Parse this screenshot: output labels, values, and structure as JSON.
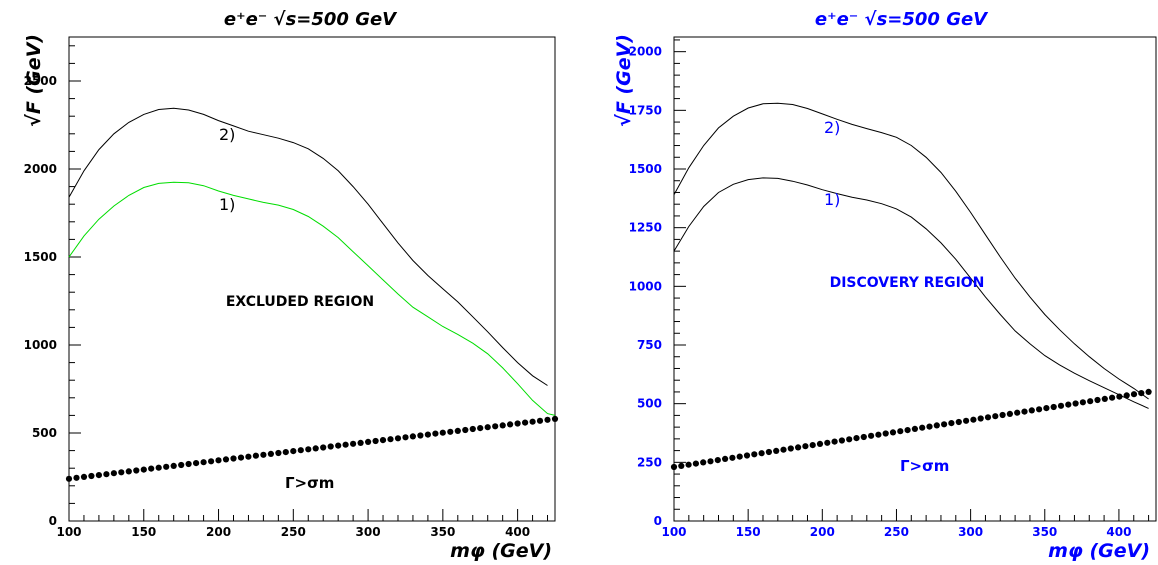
{
  "chart_data": [
    {
      "type": "line",
      "title": "e⁺e⁻ √s=500 GeV",
      "xlabel": "mφ (GeV)",
      "ylabel": "√F (GeV)",
      "xlim": [
        100,
        425
      ],
      "ylim": [
        0,
        2750
      ],
      "xticks": [
        100,
        150,
        200,
        250,
        300,
        350,
        400
      ],
      "yticks": [
        0,
        500,
        1000,
        1500,
        2000,
        2500
      ],
      "text_color": "#000000",
      "region_label": "EXCLUDED REGION",
      "width_label": "Γ>σm",
      "series": [
        {
          "name": "2)",
          "color": "#000000",
          "style": "line",
          "x": [
            100,
            110,
            120,
            130,
            140,
            150,
            160,
            170,
            180,
            190,
            200,
            210,
            220,
            230,
            240,
            250,
            260,
            270,
            280,
            290,
            300,
            310,
            320,
            330,
            340,
            350,
            360,
            370,
            380,
            390,
            400,
            410,
            420
          ],
          "y": [
            1840,
            1990,
            2110,
            2200,
            2265,
            2310,
            2338,
            2345,
            2335,
            2310,
            2275,
            2245,
            2215,
            2195,
            2175,
            2150,
            2115,
            2060,
            1990,
            1900,
            1800,
            1690,
            1580,
            1480,
            1395,
            1320,
            1245,
            1160,
            1075,
            985,
            900,
            825,
            770
          ]
        },
        {
          "name": "1)",
          "color": "#00dd00",
          "style": "line",
          "x": [
            100,
            110,
            120,
            130,
            140,
            150,
            160,
            170,
            180,
            190,
            200,
            210,
            220,
            230,
            240,
            250,
            260,
            270,
            280,
            290,
            300,
            310,
            320,
            330,
            340,
            350,
            360,
            370,
            380,
            390,
            400,
            410,
            420,
            425
          ],
          "y": [
            1500,
            1620,
            1715,
            1790,
            1850,
            1895,
            1918,
            1925,
            1922,
            1905,
            1875,
            1850,
            1830,
            1810,
            1795,
            1770,
            1730,
            1675,
            1610,
            1530,
            1450,
            1370,
            1290,
            1215,
            1160,
            1105,
            1060,
            1010,
            950,
            870,
            780,
            685,
            610,
            600
          ]
        },
        {
          "name": "Γ>σm",
          "color": "#000000",
          "style": "dots",
          "x": [
            100,
            425
          ],
          "y": [
            240,
            580
          ]
        }
      ]
    },
    {
      "type": "line",
      "title": "e⁺e⁻ √s=500 GeV",
      "xlabel": "mφ (GeV)",
      "ylabel": "√F (GeV)",
      "xlim": [
        100,
        425
      ],
      "ylim": [
        0,
        2062.5
      ],
      "xticks": [
        100,
        150,
        200,
        250,
        300,
        350,
        400
      ],
      "yticks": [
        0,
        250,
        500,
        750,
        1000,
        1250,
        1500,
        1750,
        2000
      ],
      "text_color": "#0000ff",
      "region_label": "DISCOVERY REGION",
      "width_label": "Γ>σm",
      "series": [
        {
          "name": "2)",
          "color": "#000000",
          "style": "line",
          "x": [
            100,
            110,
            120,
            130,
            140,
            150,
            160,
            170,
            180,
            190,
            200,
            210,
            220,
            230,
            240,
            250,
            260,
            270,
            280,
            290,
            300,
            310,
            320,
            330,
            340,
            350,
            360,
            370,
            380,
            390,
            400,
            410,
            420
          ],
          "y": [
            1390,
            1505,
            1600,
            1675,
            1725,
            1760,
            1778,
            1780,
            1775,
            1758,
            1735,
            1712,
            1690,
            1672,
            1655,
            1635,
            1600,
            1550,
            1485,
            1405,
            1315,
            1220,
            1125,
            1035,
            955,
            880,
            815,
            755,
            700,
            650,
            605,
            565,
            520
          ]
        },
        {
          "name": "1)",
          "color": "#000000",
          "style": "line",
          "x": [
            100,
            110,
            120,
            130,
            140,
            150,
            160,
            170,
            180,
            190,
            200,
            210,
            220,
            230,
            240,
            250,
            260,
            270,
            280,
            290,
            300,
            310,
            320,
            330,
            340,
            350,
            360,
            370,
            380,
            390,
            400,
            410,
            420
          ],
          "y": [
            1150,
            1255,
            1340,
            1400,
            1435,
            1455,
            1462,
            1460,
            1448,
            1432,
            1412,
            1395,
            1380,
            1368,
            1352,
            1330,
            1295,
            1245,
            1185,
            1115,
            1035,
            955,
            880,
            810,
            755,
            705,
            665,
            630,
            598,
            568,
            538,
            508,
            480
          ]
        },
        {
          "name": "Γ>σm",
          "color": "#000000",
          "style": "dots",
          "x": [
            100,
            420
          ],
          "y": [
            230,
            550
          ]
        }
      ]
    }
  ]
}
